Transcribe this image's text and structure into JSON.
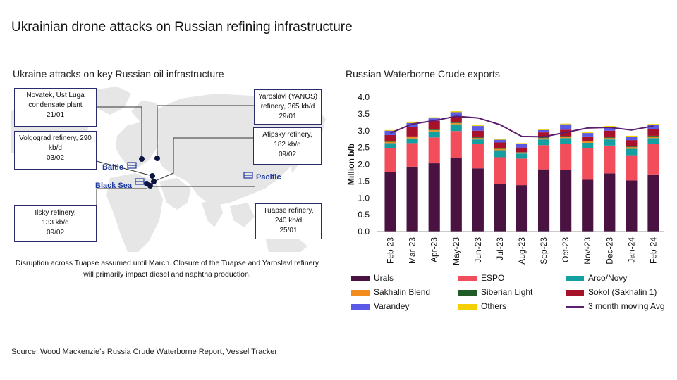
{
  "page": {
    "title": "Ukrainian drone attacks on Russian refining infrastructure",
    "source": "Source: Wood Mackenzie’s Russia Crude Waterborne Report, Vessel Tracker"
  },
  "map": {
    "subtitle": "Ukraine attacks on key Russian oil infrastructure",
    "note_line1": "Disruption across Tuapse assumed until March. Closure of the Tuapse and Yaroslavl refinery",
    "note_line2": "will primarily impact diesel and naphtha production.",
    "regions": {
      "baltic": "Baltic",
      "black_sea": "Black Sea",
      "pacific": "Pacific"
    },
    "callouts": {
      "novatek": [
        "Novatek, Ust Luga",
        "condensate plant",
        "21/01"
      ],
      "volgograd": [
        "Volgograd refinery, 290",
        "kb/d",
        "03/02"
      ],
      "ilsky": [
        "Ilsky refinery,",
        "133 kb/d",
        "09/02"
      ],
      "yaroslavl": [
        "Yaroslavl (YANOS)",
        "refinery, 365 kb/d",
        "29/01"
      ],
      "afipsky": [
        "Afipsky refinery,",
        "182 kb/d",
        "09/02"
      ],
      "tuapse": [
        "Tuapse refinery,",
        "240 kb/d",
        "25/01"
      ]
    },
    "colors": {
      "land": "#e6e6e6",
      "marker": "#0d1440",
      "callout_border": "#2b2b6b",
      "region_label": "#1f3a9e"
    }
  },
  "chart": {
    "subtitle": "Russian Waterborne Crude exports"
  },
  "chart_data": {
    "type": "bar",
    "stacked": true,
    "title": "Russian Waterborne Crude exports",
    "ylabel": "Million b/b",
    "ylim": [
      0,
      4.0
    ],
    "yticks": [
      "0.0",
      "0.5",
      "1.0",
      "1.5",
      "2.0",
      "2.5",
      "3.0",
      "3.5",
      "4.0"
    ],
    "categories": [
      "Feb-23",
      "Mar-23",
      "Apr-23",
      "May-23",
      "Jun-23",
      "Jul-23",
      "Aug-23",
      "Sep-23",
      "Oct-23",
      "Nov-23",
      "Dec-23",
      "Jan-24",
      "Feb-24"
    ],
    "series": [
      {
        "name": "Urals",
        "color": "#4a1240",
        "values": [
          1.77,
          1.93,
          2.03,
          2.19,
          1.88,
          1.41,
          1.38,
          1.85,
          1.84,
          1.54,
          1.73,
          1.52,
          1.7
        ]
      },
      {
        "name": "ESPO",
        "color": "#f24d5b",
        "values": [
          0.72,
          0.7,
          0.77,
          0.8,
          0.72,
          0.8,
          0.79,
          0.72,
          0.77,
          0.95,
          0.83,
          0.75,
          0.9
        ]
      },
      {
        "name": "Arco/Novy",
        "color": "#14a0a0",
        "values": [
          0.14,
          0.14,
          0.18,
          0.2,
          0.14,
          0.21,
          0.15,
          0.17,
          0.17,
          0.15,
          0.18,
          0.19,
          0.18
        ]
      },
      {
        "name": "Sakhalin Blend",
        "color": "#f28c1e",
        "values": [
          0.04,
          0.04,
          0.04,
          0.04,
          0.04,
          0.04,
          0.03,
          0.04,
          0.04,
          0.04,
          0.04,
          0.05,
          0.05
        ]
      },
      {
        "name": "Siberian Light",
        "color": "#1f5c28",
        "values": [
          0.02,
          0.02,
          0.02,
          0.03,
          0.02,
          0.01,
          0.01,
          0.02,
          0.02,
          0.02,
          0.02,
          0.02,
          0.02
        ]
      },
      {
        "name": "Sokol (Sakhalin 1)",
        "color": "#a8112a",
        "values": [
          0.18,
          0.28,
          0.25,
          0.17,
          0.2,
          0.18,
          0.14,
          0.15,
          0.19,
          0.13,
          0.2,
          0.19,
          0.2
        ]
      },
      {
        "name": "Varandey",
        "color": "#5a5ae6",
        "values": [
          0.13,
          0.12,
          0.08,
          0.12,
          0.14,
          0.08,
          0.11,
          0.07,
          0.16,
          0.1,
          0.11,
          0.1,
          0.12
        ]
      },
      {
        "name": "Others",
        "color": "#f5d000",
        "values": [
          0.02,
          0.04,
          0.03,
          0.03,
          0.02,
          0.02,
          0.02,
          0.03,
          0.02,
          0.02,
          0.03,
          0.03,
          0.03
        ]
      }
    ],
    "line": {
      "name": "3 month moving Avg",
      "color": "#5b1d6e",
      "values": [
        2.93,
        3.2,
        3.3,
        3.43,
        3.38,
        3.18,
        2.83,
        2.82,
        2.95,
        3.08,
        3.1,
        3.02,
        3.14
      ]
    },
    "grid": false,
    "legend": "bottom"
  }
}
